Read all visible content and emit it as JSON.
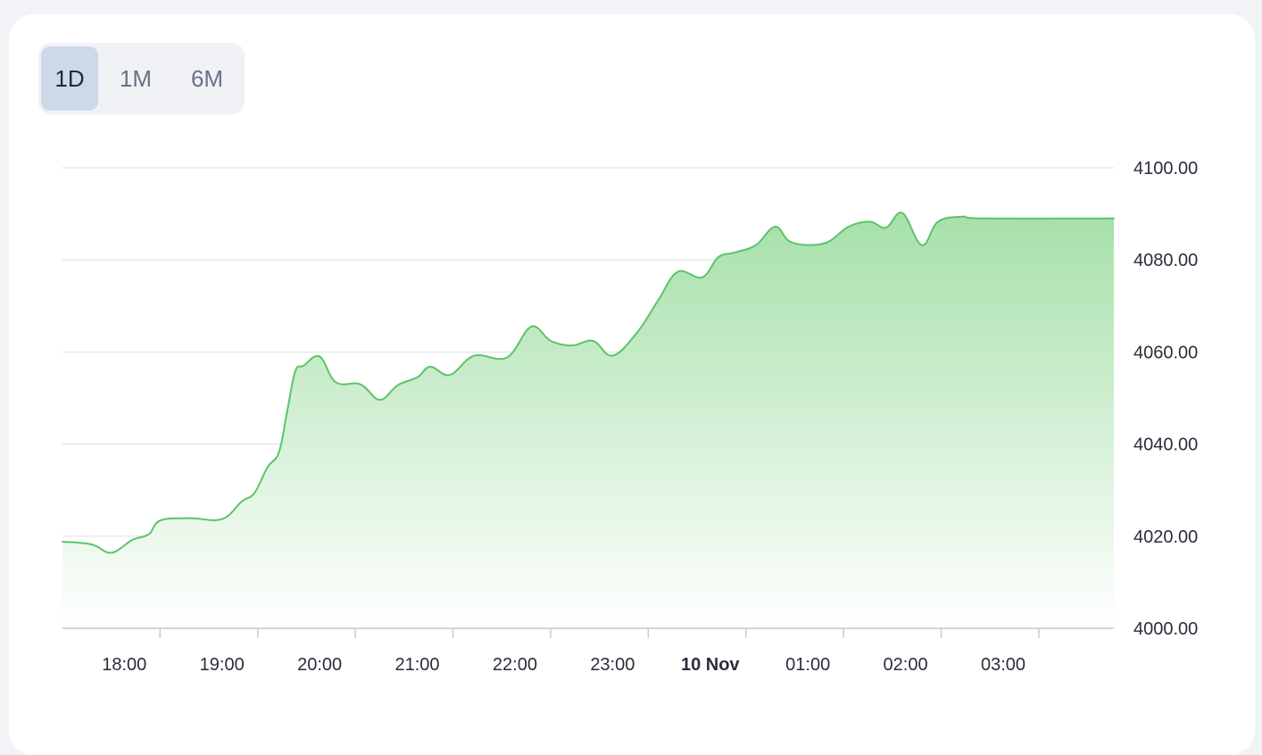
{
  "range_selector": {
    "tabs": [
      {
        "label": "1D",
        "active": true
      },
      {
        "label": "1M",
        "active": false
      },
      {
        "label": "6M",
        "active": false
      }
    ]
  },
  "colors": {
    "line": "#5cc46a",
    "fill_top": "#a6e0a9",
    "fill_bottom": "#ffffff",
    "grid": "#dcdde2",
    "active_tab_bg": "#cdd9e8"
  },
  "chart_data": {
    "type": "area",
    "title": "",
    "xlabel": "",
    "ylabel": "",
    "grid": "horizontal",
    "y_axis_position": "right",
    "ylim": [
      4000,
      4100
    ],
    "y_ticks": [
      "4000.00",
      "4020.00",
      "4040.00",
      "4060.00",
      "4080.00",
      "4100.00"
    ],
    "x_range": [
      "17:22",
      "04:08"
    ],
    "x_ticks": [
      {
        "time": "18:00",
        "label": "18:00",
        "bold": false
      },
      {
        "time": "19:00",
        "label": "19:00",
        "bold": false
      },
      {
        "time": "20:00",
        "label": "20:00",
        "bold": false
      },
      {
        "time": "21:00",
        "label": "21:00",
        "bold": false
      },
      {
        "time": "22:00",
        "label": "22:00",
        "bold": false
      },
      {
        "time": "23:00",
        "label": "23:00",
        "bold": false
      },
      {
        "time": "00:00",
        "label": "10 Nov",
        "bold": true
      },
      {
        "time": "01:00",
        "label": "01:00",
        "bold": false
      },
      {
        "time": "02:00",
        "label": "02:00",
        "bold": false
      },
      {
        "time": "03:00",
        "label": "03:00",
        "bold": false
      }
    ],
    "series": [
      {
        "points": [
          [
            "17:22",
            4018.8
          ],
          [
            "17:40",
            4018.2
          ],
          [
            "17:52",
            4016.4
          ],
          [
            "18:05",
            4019.2
          ],
          [
            "18:15",
            4020.4
          ],
          [
            "18:22",
            4023.4
          ],
          [
            "18:40",
            4023.9
          ],
          [
            "19:00",
            4023.7
          ],
          [
            "19:12",
            4027.5
          ],
          [
            "19:20",
            4029.4
          ],
          [
            "19:28",
            4035.0
          ],
          [
            "19:35",
            4038.2
          ],
          [
            "19:40",
            4047.0
          ],
          [
            "19:45",
            4055.8
          ],
          [
            "19:50",
            4057.0
          ],
          [
            "20:00",
            4059.0
          ],
          [
            "20:10",
            4053.4
          ],
          [
            "20:25",
            4053.0
          ],
          [
            "20:37",
            4049.6
          ],
          [
            "20:48",
            4052.8
          ],
          [
            "21:00",
            4054.5
          ],
          [
            "21:08",
            4056.8
          ],
          [
            "21:20",
            4055.0
          ],
          [
            "21:35",
            4059.2
          ],
          [
            "21:55",
            4058.8
          ],
          [
            "22:10",
            4065.5
          ],
          [
            "22:22",
            4062.4
          ],
          [
            "22:35",
            4061.4
          ],
          [
            "22:48",
            4062.4
          ],
          [
            "23:00",
            4059.2
          ],
          [
            "23:15",
            4064.2
          ],
          [
            "23:28",
            4071.2
          ],
          [
            "23:40",
            4077.4
          ],
          [
            "23:55",
            4076.2
          ],
          [
            "00:05",
            4080.6
          ],
          [
            "00:15",
            4081.6
          ],
          [
            "00:28",
            4083.2
          ],
          [
            "00:40",
            4087.2
          ],
          [
            "00:50",
            4083.8
          ],
          [
            "01:10",
            4083.6
          ],
          [
            "01:25",
            4087.2
          ],
          [
            "01:38",
            4088.3
          ],
          [
            "01:48",
            4087.0
          ],
          [
            "01:58",
            4090.2
          ],
          [
            "02:10",
            4083.2
          ],
          [
            "02:20",
            4088.3
          ],
          [
            "02:35",
            4089.4
          ],
          [
            "02:48",
            4089.0
          ],
          [
            "04:08",
            4089.0
          ]
        ]
      }
    ]
  }
}
